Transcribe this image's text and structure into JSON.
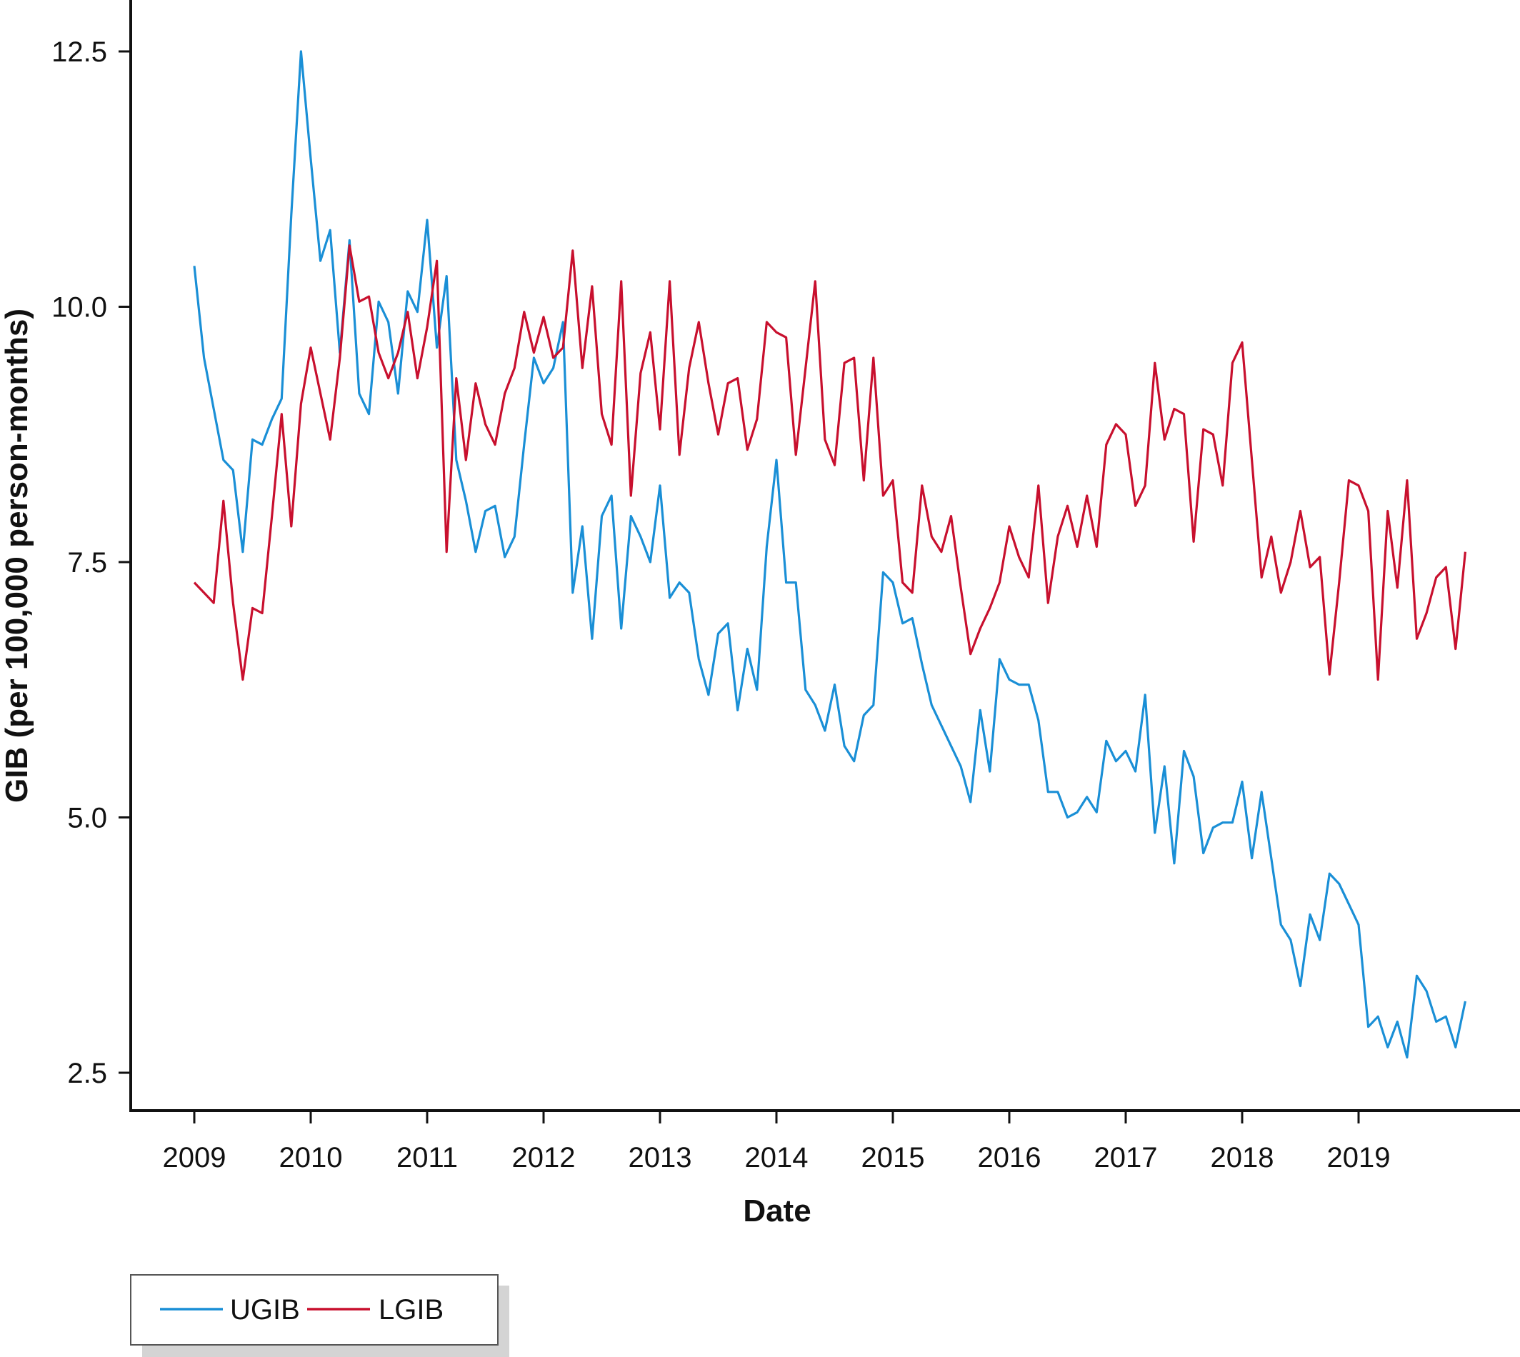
{
  "chart_data": {
    "type": "line",
    "title": "",
    "xlabel": "Date",
    "ylabel": "GIB (per 100,000 person-months)",
    "xlim": [
      "2009-01",
      "2019-12"
    ],
    "ylim": [
      2.5,
      12.5
    ],
    "x_ticks": [
      "2009",
      "2010",
      "2011",
      "2012",
      "2013",
      "2014",
      "2015",
      "2016",
      "2017",
      "2018",
      "2019"
    ],
    "y_ticks": [
      "2.5",
      "5.0",
      "7.5",
      "10.0",
      "12.5"
    ],
    "grid": false,
    "legend_position": "bottom-left",
    "x": [
      "2009-01",
      "2009-02",
      "2009-03",
      "2009-04",
      "2009-05",
      "2009-06",
      "2009-07",
      "2009-08",
      "2009-09",
      "2009-10",
      "2009-11",
      "2009-12",
      "2010-01",
      "2010-02",
      "2010-03",
      "2010-04",
      "2010-05",
      "2010-06",
      "2010-07",
      "2010-08",
      "2010-09",
      "2010-10",
      "2010-11",
      "2010-12",
      "2011-01",
      "2011-02",
      "2011-03",
      "2011-04",
      "2011-05",
      "2011-06",
      "2011-07",
      "2011-08",
      "2011-09",
      "2011-10",
      "2011-11",
      "2011-12",
      "2012-01",
      "2012-02",
      "2012-03",
      "2012-04",
      "2012-05",
      "2012-06",
      "2012-07",
      "2012-08",
      "2012-09",
      "2012-10",
      "2012-11",
      "2012-12",
      "2013-01",
      "2013-02",
      "2013-03",
      "2013-04",
      "2013-05",
      "2013-06",
      "2013-07",
      "2013-08",
      "2013-09",
      "2013-10",
      "2013-11",
      "2013-12",
      "2014-01",
      "2014-02",
      "2014-03",
      "2014-04",
      "2014-05",
      "2014-06",
      "2014-07",
      "2014-08",
      "2014-09",
      "2014-10",
      "2014-11",
      "2014-12",
      "2015-01",
      "2015-02",
      "2015-03",
      "2015-04",
      "2015-05",
      "2015-06",
      "2015-07",
      "2015-08",
      "2015-09",
      "2015-10",
      "2015-11",
      "2015-12",
      "2016-01",
      "2016-02",
      "2016-03",
      "2016-04",
      "2016-05",
      "2016-06",
      "2016-07",
      "2016-08",
      "2016-09",
      "2016-10",
      "2016-11",
      "2016-12",
      "2017-01",
      "2017-02",
      "2017-03",
      "2017-04",
      "2017-05",
      "2017-06",
      "2017-07",
      "2017-08",
      "2017-09",
      "2017-10",
      "2017-11",
      "2017-12",
      "2018-01",
      "2018-02",
      "2018-03",
      "2018-04",
      "2018-05",
      "2018-06",
      "2018-07",
      "2018-08",
      "2018-09",
      "2018-10",
      "2018-11",
      "2018-12",
      "2019-01",
      "2019-02",
      "2019-03",
      "2019-04",
      "2019-05",
      "2019-06",
      "2019-07",
      "2019-08",
      "2019-09",
      "2019-10",
      "2019-11",
      "2019-12"
    ],
    "series": [
      {
        "name": "UGIB",
        "color": "#1a8fd6",
        "values": [
          10.4,
          9.5,
          9.0,
          8.5,
          8.4,
          7.6,
          8.7,
          8.65,
          8.9,
          9.1,
          10.9,
          12.5,
          11.45,
          10.45,
          10.75,
          9.55,
          10.65,
          9.15,
          8.95,
          10.05,
          9.85,
          9.15,
          10.15,
          9.95,
          10.85,
          9.6,
          10.3,
          8.5,
          8.1,
          7.6,
          8.0,
          8.05,
          7.55,
          7.75,
          8.65,
          9.5,
          9.25,
          9.4,
          9.85,
          7.2,
          7.85,
          6.75,
          7.95,
          8.15,
          6.85,
          7.95,
          7.75,
          7.5,
          8.25,
          7.15,
          7.3,
          7.2,
          6.55,
          6.2,
          6.8,
          6.9,
          6.05,
          6.65,
          6.25,
          7.65,
          8.5,
          7.3,
          7.3,
          6.25,
          6.1,
          5.85,
          6.3,
          5.7,
          5.55,
          6.0,
          6.1,
          7.4,
          7.3,
          6.9,
          6.95,
          6.5,
          6.1,
          5.9,
          5.7,
          5.5,
          5.15,
          6.05,
          5.45,
          6.55,
          6.35,
          6.3,
          6.3,
          5.95,
          5.25,
          5.25,
          5.0,
          5.05,
          5.2,
          5.05,
          5.75,
          5.55,
          5.65,
          5.45,
          6.2,
          4.85,
          5.5,
          4.55,
          5.65,
          5.4,
          4.65,
          4.9,
          4.95,
          4.95,
          5.35,
          4.6,
          5.25,
          4.6,
          3.95,
          3.8,
          3.35,
          4.05,
          3.8,
          4.45,
          4.35,
          4.15,
          3.95,
          2.95,
          3.05,
          2.75,
          3.0,
          2.65,
          3.45,
          3.3,
          3.0,
          3.05,
          2.75,
          3.2
        ]
      },
      {
        "name": "LGIB",
        "color": "#c8102e",
        "values": [
          7.3,
          7.2,
          7.1,
          8.1,
          7.1,
          6.35,
          7.05,
          7.0,
          7.95,
          8.95,
          7.85,
          9.05,
          9.6,
          9.15,
          8.7,
          9.5,
          10.6,
          10.05,
          10.1,
          9.55,
          9.3,
          9.55,
          9.95,
          9.3,
          9.8,
          10.45,
          7.6,
          9.3,
          8.5,
          9.25,
          8.85,
          8.65,
          9.15,
          9.4,
          9.95,
          9.55,
          9.9,
          9.5,
          9.6,
          10.55,
          9.4,
          10.2,
          8.95,
          8.65,
          10.25,
          8.15,
          9.35,
          9.75,
          8.8,
          10.25,
          8.55,
          9.4,
          9.85,
          9.25,
          8.75,
          9.25,
          9.3,
          8.6,
          8.9,
          9.85,
          9.75,
          9.7,
          8.55,
          9.4,
          10.25,
          8.7,
          8.45,
          9.45,
          9.5,
          8.3,
          9.5,
          8.15,
          8.3,
          7.3,
          7.2,
          8.25,
          7.75,
          7.6,
          7.95,
          7.25,
          6.6,
          6.85,
          7.05,
          7.3,
          7.85,
          7.55,
          7.35,
          8.25,
          7.1,
          7.75,
          8.05,
          7.65,
          8.15,
          7.65,
          8.65,
          8.85,
          8.75,
          8.05,
          8.25,
          9.45,
          8.7,
          9.0,
          8.95,
          7.7,
          8.8,
          8.75,
          8.25,
          9.45,
          9.65,
          8.5,
          7.35,
          7.75,
          7.2,
          7.5,
          8.0,
          7.45,
          7.55,
          6.4,
          7.3,
          8.3,
          8.25,
          8.0,
          6.35,
          8.0,
          7.25,
          8.3,
          6.75,
          7.0,
          7.35,
          7.45,
          6.65,
          7.6
        ]
      }
    ]
  }
}
